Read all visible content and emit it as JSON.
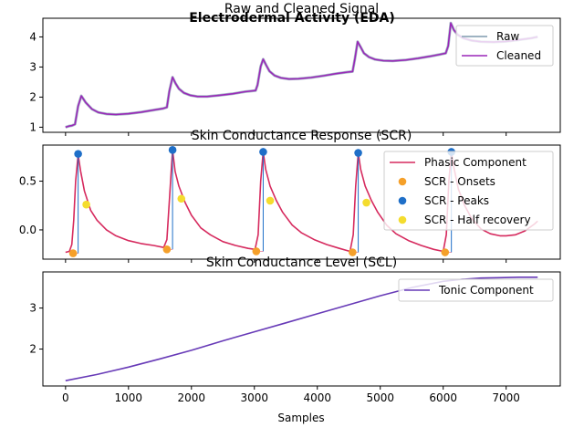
{
  "figure": {
    "suptitle": "Electrodermal Activity (EDA)",
    "xlabel": "Samples",
    "x_range": [
      -360,
      7860
    ],
    "x_ticks": [
      0,
      1000,
      2000,
      3000,
      4000,
      5000,
      6000,
      7000
    ],
    "x_tick_labels": [
      "0",
      "1000",
      "2000",
      "3000",
      "4000",
      "5000",
      "6000",
      "7000"
    ]
  },
  "chart_data": [
    {
      "type": "line",
      "title": "Raw and Cleaned Signal",
      "ylim": [
        0.83,
        4.62
      ],
      "y_ticks": [
        1,
        2,
        3,
        4
      ],
      "y_tick_labels": [
        "1",
        "2",
        "3",
        "4"
      ],
      "legend_position": "top-right",
      "series": [
        {
          "name": "Raw",
          "color": "#9eb3c2",
          "x": [
            0,
            60,
            100,
            150,
            200,
            250,
            320,
            420,
            520,
            650,
            800,
            1000,
            1200,
            1400,
            1550,
            1610,
            1650,
            1700,
            1750,
            1800,
            1880,
            1980,
            2100,
            2250,
            2450,
            2650,
            2850,
            3020,
            3050,
            3100,
            3140,
            3190,
            3240,
            3320,
            3420,
            3550,
            3700,
            3900,
            4100,
            4300,
            4480,
            4560,
            4600,
            4640,
            4690,
            4740,
            4820,
            4920,
            5050,
            5200,
            5400,
            5600,
            5800,
            5950,
            6040,
            6080,
            6120,
            6170,
            6230,
            6320,
            6450,
            6600,
            6800,
            7000,
            7200,
            7400,
            7500
          ],
          "values": [
            1.0,
            1.04,
            1.05,
            1.1,
            1.7,
            2.04,
            1.82,
            1.6,
            1.49,
            1.44,
            1.42,
            1.45,
            1.5,
            1.57,
            1.62,
            1.66,
            2.2,
            2.66,
            2.45,
            2.28,
            2.14,
            2.06,
            2.02,
            2.02,
            2.06,
            2.11,
            2.18,
            2.22,
            2.4,
            3.02,
            3.26,
            3.05,
            2.86,
            2.72,
            2.64,
            2.6,
            2.61,
            2.65,
            2.71,
            2.78,
            2.83,
            2.85,
            3.3,
            3.84,
            3.66,
            3.46,
            3.33,
            3.25,
            3.21,
            3.2,
            3.23,
            3.29,
            3.36,
            3.42,
            3.46,
            3.7,
            4.46,
            4.23,
            4.07,
            3.96,
            3.88,
            3.84,
            3.83,
            3.85,
            3.9,
            3.96,
            4.0
          ]
        },
        {
          "name": "Cleaned",
          "color": "#9a27b8",
          "x": [
            0,
            60,
            100,
            150,
            200,
            250,
            320,
            420,
            520,
            650,
            800,
            1000,
            1200,
            1400,
            1550,
            1610,
            1650,
            1700,
            1750,
            1800,
            1880,
            1980,
            2100,
            2250,
            2450,
            2650,
            2850,
            3020,
            3050,
            3100,
            3140,
            3190,
            3240,
            3320,
            3420,
            3550,
            3700,
            3900,
            4100,
            4300,
            4480,
            4560,
            4600,
            4640,
            4690,
            4740,
            4820,
            4920,
            5050,
            5200,
            5400,
            5600,
            5800,
            5950,
            6040,
            6080,
            6120,
            6170,
            6230,
            6320,
            6450,
            6600,
            6800,
            7000,
            7200,
            7400,
            7500
          ],
          "values": [
            1.0,
            1.04,
            1.05,
            1.1,
            1.7,
            2.04,
            1.82,
            1.6,
            1.49,
            1.44,
            1.42,
            1.45,
            1.5,
            1.57,
            1.62,
            1.66,
            2.2,
            2.66,
            2.45,
            2.28,
            2.14,
            2.06,
            2.02,
            2.02,
            2.06,
            2.11,
            2.18,
            2.22,
            2.4,
            3.02,
            3.26,
            3.05,
            2.86,
            2.72,
            2.64,
            2.6,
            2.61,
            2.65,
            2.71,
            2.78,
            2.83,
            2.85,
            3.3,
            3.84,
            3.66,
            3.46,
            3.33,
            3.25,
            3.21,
            3.2,
            3.23,
            3.29,
            3.36,
            3.42,
            3.46,
            3.7,
            4.46,
            4.23,
            4.07,
            3.96,
            3.88,
            3.84,
            3.83,
            3.85,
            3.9,
            3.96,
            4.0
          ]
        }
      ]
    },
    {
      "type": "line",
      "title": "Skin Conductance Response (SCR)",
      "ylim": [
        -0.3,
        0.87
      ],
      "y_ticks": [
        0.0,
        0.5
      ],
      "y_tick_labels": [
        "0.0",
        "0.5"
      ],
      "legend_position": "top-right",
      "series": [
        {
          "name": "Phasic Component",
          "color": "#d62a5e",
          "x": [
            0,
            60,
            100,
            130,
            160,
            200,
            240,
            300,
            400,
            500,
            650,
            800,
            1000,
            1200,
            1400,
            1560,
            1610,
            1650,
            1700,
            1740,
            1800,
            1900,
            2000,
            2150,
            2300,
            2500,
            2700,
            2900,
            3010,
            3060,
            3100,
            3140,
            3180,
            3250,
            3350,
            3450,
            3600,
            3750,
            3950,
            4150,
            4350,
            4520,
            4570,
            4610,
            4650,
            4690,
            4760,
            4860,
            4960,
            5100,
            5250,
            5450,
            5650,
            5850,
            6000,
            6050,
            6090,
            6130,
            6170,
            6240,
            6340,
            6450,
            6600,
            6750,
            6900,
            7000,
            7150,
            7300,
            7450,
            7500
          ],
          "values": [
            -0.23,
            -0.22,
            -0.15,
            0.1,
            0.5,
            0.77,
            0.6,
            0.4,
            0.2,
            0.1,
            0.0,
            -0.06,
            -0.11,
            -0.14,
            -0.16,
            -0.18,
            -0.1,
            0.3,
            0.82,
            0.6,
            0.45,
            0.28,
            0.15,
            0.02,
            -0.05,
            -0.12,
            -0.16,
            -0.19,
            -0.2,
            -0.05,
            0.5,
            0.8,
            0.62,
            0.45,
            0.3,
            0.18,
            0.05,
            -0.03,
            -0.1,
            -0.15,
            -0.19,
            -0.22,
            -0.05,
            0.45,
            0.79,
            0.62,
            0.45,
            0.3,
            0.18,
            0.05,
            -0.04,
            -0.11,
            -0.16,
            -0.2,
            -0.22,
            -0.05,
            0.5,
            0.8,
            0.64,
            0.42,
            0.25,
            0.12,
            0.01,
            -0.04,
            -0.06,
            -0.06,
            -0.05,
            -0.01,
            0.06,
            0.09
          ]
        }
      ],
      "markers": [
        {
          "name": "SCR - Onsets",
          "color": "#f5a02a",
          "x": [
            120,
            1610,
            3030,
            4560,
            6030
          ],
          "y": [
            -0.24,
            -0.2,
            -0.22,
            -0.23,
            -0.23
          ]
        },
        {
          "name": "SCR - Peaks",
          "color": "#1f6fc8",
          "x": [
            200,
            1700,
            3140,
            4650,
            6130
          ],
          "y": [
            0.78,
            0.82,
            0.8,
            0.79,
            0.8
          ]
        },
        {
          "name": "SCR - Half recovery",
          "color": "#f4dc2e",
          "x": [
            330,
            1840,
            3250,
            4780
          ],
          "y": [
            0.26,
            0.32,
            0.3,
            0.28
          ]
        }
      ]
    },
    {
      "type": "line",
      "title": "Skin Conductance Level (SCL)",
      "ylim": [
        1.1,
        3.88
      ],
      "y_ticks": [
        2,
        3
      ],
      "y_tick_labels": [
        "2",
        "3"
      ],
      "legend_position": "top-right",
      "series": [
        {
          "name": "Tonic Component",
          "color": "#673ab7",
          "x": [
            0,
            500,
            1000,
            1500,
            2000,
            2500,
            3000,
            3500,
            4000,
            4500,
            5000,
            5500,
            6000,
            6300,
            6600,
            6900,
            7200,
            7500
          ],
          "values": [
            1.23,
            1.38,
            1.56,
            1.76,
            1.97,
            2.2,
            2.42,
            2.64,
            2.86,
            3.08,
            3.3,
            3.5,
            3.65,
            3.7,
            3.73,
            3.74,
            3.75,
            3.75
          ]
        }
      ]
    }
  ]
}
